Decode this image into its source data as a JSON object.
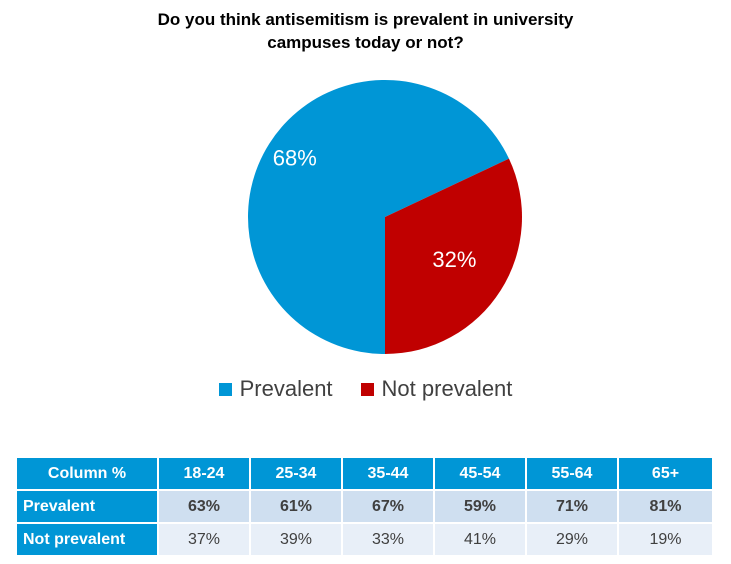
{
  "chart_data": {
    "type": "pie",
    "title": "Do you think antisemitism is prevalent in university campuses today or not?",
    "title_lines": [
      "Do you think antisemitism is prevalent in university",
      "campuses today or not?"
    ],
    "slices": [
      {
        "label": "Prevalent",
        "value": 68,
        "display": "68%",
        "color": "#0096d6"
      },
      {
        "label": "Not prevalent",
        "value": 32,
        "display": "32%",
        "color": "#c00000"
      }
    ],
    "legend_position": "bottom"
  },
  "table": {
    "header": [
      "Column %",
      "18-24",
      "25-34",
      "35-44",
      "45-54",
      "55-64",
      "65+"
    ],
    "rows": [
      {
        "label": "Prevalent",
        "values": [
          "63%",
          "61%",
          "67%",
          "59%",
          "71%",
          "81%"
        ]
      },
      {
        "label": "Not prevalent",
        "values": [
          "37%",
          "39%",
          "33%",
          "41%",
          "29%",
          "19%"
        ]
      }
    ]
  }
}
